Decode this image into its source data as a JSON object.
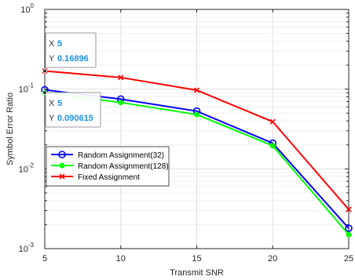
{
  "chart_data": {
    "type": "line",
    "title": "",
    "xlabel": "Transmit SNR",
    "ylabel": "Symbol Error Ratio",
    "x": [
      5,
      10,
      15,
      20,
      25
    ],
    "xlim": [
      5,
      25
    ],
    "ylim": [
      0.001,
      1
    ],
    "yscale": "log",
    "x_ticks": [
      "5",
      "10",
      "15",
      "20",
      "25"
    ],
    "y_ticks": [
      {
        "value": 1,
        "base": "10",
        "exp": "0"
      },
      {
        "value": 0.1,
        "base": "10",
        "exp": "-1"
      },
      {
        "value": 0.01,
        "base": "10",
        "exp": "-2"
      },
      {
        "value": 0.001,
        "base": "10",
        "exp": "-3"
      }
    ],
    "grid": true,
    "legend_position": "lower-left",
    "series": [
      {
        "name": "Random Assignment(32)",
        "color": "#0000ff",
        "marker": "circle",
        "values": [
          0.098,
          0.075,
          0.053,
          0.021,
          0.0018
        ]
      },
      {
        "name": "Random Assignment(128)",
        "color": "#00ff00",
        "marker": "dot",
        "values": [
          0.090615,
          0.068,
          0.048,
          0.0195,
          0.0015
        ]
      },
      {
        "name": "Fixed Assignment",
        "color": "#ff0000",
        "marker": "x",
        "values": [
          0.16896,
          0.14,
          0.097,
          0.039,
          0.0031
        ]
      }
    ],
    "datatips": [
      {
        "x_key": "X",
        "x_value": "5",
        "y_key": "Y",
        "y_value": "0.16896",
        "anchor_x": 5,
        "anchor_y": 0.16896
      },
      {
        "x_key": "X",
        "x_value": "5",
        "y_key": "Y",
        "y_value": "0.090615",
        "anchor_x": 5,
        "anchor_y": 0.090615
      }
    ],
    "colors": {
      "axis": "#262626",
      "grid": "#dfdfdf",
      "datatip_value": "#1a8fe3",
      "datatip_border": "#9a9a9a"
    }
  }
}
